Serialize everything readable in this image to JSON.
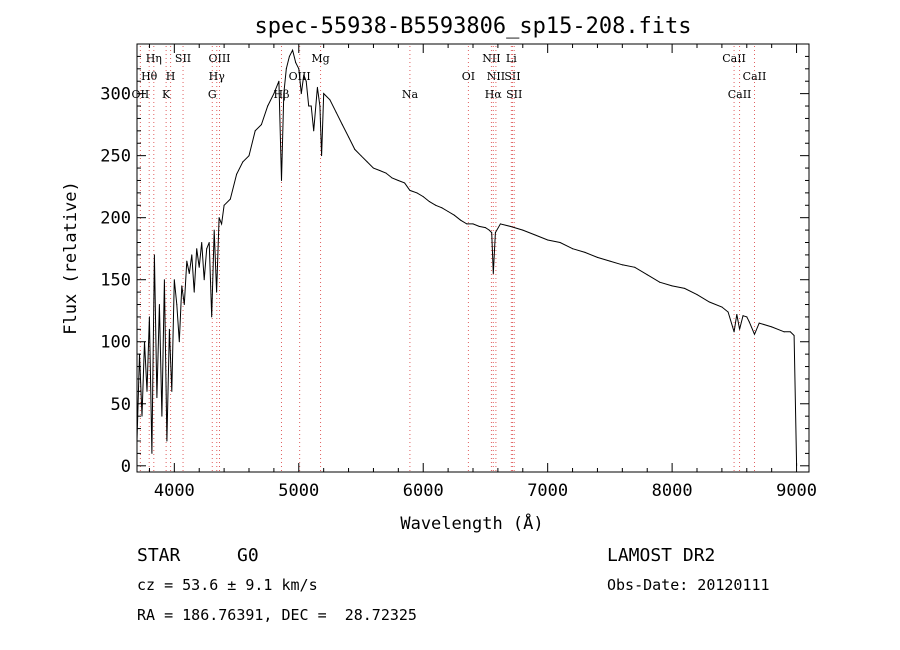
{
  "chart_data": {
    "type": "line",
    "title": "spec-55938-B5593806_sp15-208.fits",
    "xlabel": "Wavelength (Å)",
    "ylabel": "Flux (relative)",
    "xlim": [
      3700,
      9100
    ],
    "ylim": [
      -5,
      340
    ],
    "xticks": [
      4000,
      5000,
      6000,
      7000,
      8000,
      9000
    ],
    "yticks": [
      0,
      50,
      100,
      150,
      200,
      250,
      300
    ],
    "grid": false,
    "legend": "none",
    "line_color": "#000000",
    "marker_color": "#e06060",
    "series": [
      {
        "x": [
          3700,
          3720,
          3740,
          3760,
          3780,
          3800,
          3820,
          3840,
          3860,
          3880,
          3900,
          3920,
          3940,
          3960,
          3980,
          4000,
          4020,
          4040,
          4060,
          4080,
          4100,
          4120,
          4140,
          4160,
          4180,
          4200,
          4220,
          4240,
          4260,
          4280,
          4300,
          4320,
          4340,
          4360,
          4380,
          4400,
          4450,
          4500,
          4550,
          4600,
          4650,
          4700,
          4750,
          4800,
          4840,
          4861,
          4880,
          4900,
          4925,
          4950,
          4975,
          5000,
          5020,
          5040,
          5060,
          5080,
          5100,
          5120,
          5150,
          5170,
          5183,
          5200,
          5250,
          5300,
          5350,
          5400,
          5450,
          5500,
          5550,
          5600,
          5650,
          5700,
          5750,
          5800,
          5850,
          5893,
          5950,
          6000,
          6050,
          6100,
          6150,
          6200,
          6250,
          6300,
          6350,
          6400,
          6450,
          6500,
          6530,
          6550,
          6563,
          6580,
          6620,
          6700,
          6800,
          6900,
          7000,
          7100,
          7200,
          7300,
          7400,
          7500,
          7600,
          7700,
          7800,
          7900,
          8000,
          8100,
          8200,
          8300,
          8400,
          8450,
          8498,
          8520,
          8542,
          8570,
          8600,
          8620,
          8662,
          8700,
          8800,
          8900,
          8950,
          8980,
          9000
        ],
        "y": [
          20,
          90,
          40,
          100,
          60,
          120,
          10,
          170,
          55,
          130,
          40,
          150,
          20,
          110,
          60,
          150,
          130,
          100,
          145,
          130,
          165,
          155,
          170,
          140,
          175,
          160,
          180,
          150,
          175,
          180,
          120,
          190,
          140,
          200,
          195,
          210,
          215,
          235,
          245,
          250,
          270,
          275,
          290,
          300,
          310,
          230,
          300,
          320,
          330,
          335,
          325,
          320,
          300,
          315,
          310,
          290,
          290,
          270,
          305,
          290,
          250,
          300,
          295,
          285,
          275,
          265,
          255,
          250,
          245,
          240,
          238,
          236,
          232,
          230,
          228,
          222,
          220,
          217,
          213,
          210,
          208,
          205,
          202,
          198,
          195,
          195,
          193,
          192,
          190,
          188,
          155,
          188,
          195,
          193,
          190,
          186,
          182,
          180,
          175,
          172,
          168,
          165,
          162,
          160,
          154,
          148,
          145,
          143,
          138,
          132,
          128,
          124,
          108,
          122,
          110,
          121,
          120,
          116,
          106,
          115,
          112,
          108,
          108,
          105,
          0
        ]
      }
    ],
    "line_markers": [
      {
        "name": "Hη",
        "wave": 3835,
        "row": 0
      },
      {
        "name": "Hθ",
        "wave": 3798,
        "row": 1
      },
      {
        "name": "OII",
        "wave": 3727,
        "row": 2
      },
      {
        "name": "SII",
        "wave": 4070,
        "row": 0
      },
      {
        "name": "H",
        "wave": 3970,
        "row": 1
      },
      {
        "name": "K",
        "wave": 3934,
        "row": 2
      },
      {
        "name": "OIII",
        "wave": 4363,
        "row": 0
      },
      {
        "name": "Hγ",
        "wave": 4341,
        "row": 1
      },
      {
        "name": "G",
        "wave": 4305,
        "row": 2
      },
      {
        "name": "Hβ",
        "wave": 4861,
        "row": 2
      },
      {
        "name": "OIII",
        "wave": 5007,
        "row": 1
      },
      {
        "name": "Mg",
        "wave": 5175,
        "row": 0
      },
      {
        "name": "Na",
        "wave": 5893,
        "row": 2
      },
      {
        "name": "OI",
        "wave": 6363,
        "row": 1
      },
      {
        "name": "NII",
        "wave": 6548,
        "row": 0
      },
      {
        "name": "NII",
        "wave": 6584,
        "row": 1
      },
      {
        "name": "Hα",
        "wave": 6563,
        "row": 2
      },
      {
        "name": "Li",
        "wave": 6708,
        "row": 0
      },
      {
        "name": "SII",
        "wave": 6717,
        "row": 1
      },
      {
        "name": "SII",
        "wave": 6731,
        "row": 2
      },
      {
        "name": "CaII",
        "wave": 8498,
        "row": 0
      },
      {
        "name": "CaII",
        "wave": 8662,
        "row": 1
      },
      {
        "name": "CaII",
        "wave": 8542,
        "row": 2
      }
    ]
  },
  "info": {
    "class": "STAR",
    "subclass": "G0",
    "survey": "LAMOST DR2",
    "redshift": "cz = 53.6 ± 9.1 km/s",
    "obs_date": "Obs-Date: 20120111",
    "coords": "RA = 186.76391, DEC =  28.72325"
  }
}
